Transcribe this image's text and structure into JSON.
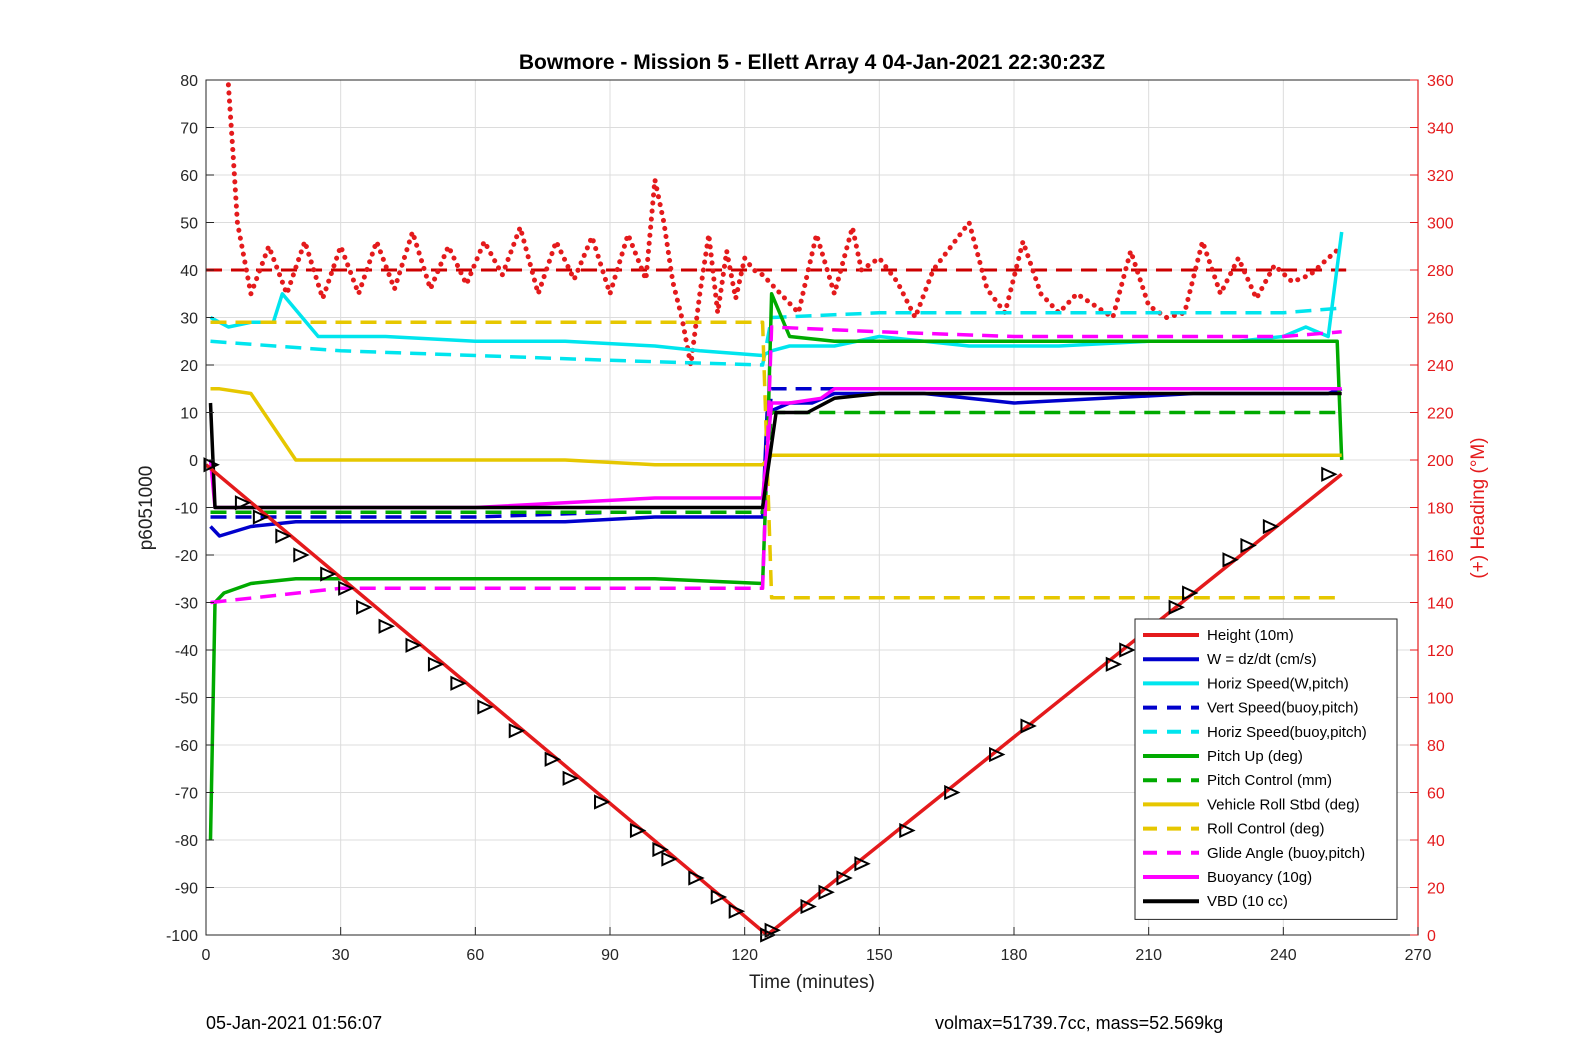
{
  "chart_data": {
    "type": "line",
    "title": "Bowmore - Mission 5 - Ellett Array 4 04-Jan-2021 22:30:23Z",
    "xlabel": "Time (minutes)",
    "ylabel_left": "p6051000",
    "ylabel_right": "(+) Heading (°M)",
    "xlim": [
      0,
      270
    ],
    "ylim_left": [
      -100,
      80
    ],
    "ylim_right": [
      0,
      360
    ],
    "xticks": [
      0,
      30,
      60,
      90,
      120,
      150,
      180,
      210,
      240,
      270
    ],
    "yticks_left": [
      -100,
      -90,
      -80,
      -70,
      -60,
      -50,
      -40,
      -30,
      -20,
      -10,
      0,
      10,
      20,
      30,
      40,
      50,
      60,
      70,
      80
    ],
    "yticks_right": [
      0,
      20,
      40,
      60,
      80,
      100,
      120,
      140,
      160,
      180,
      200,
      220,
      240,
      260,
      280,
      300,
      320,
      340,
      360
    ],
    "grid": true,
    "legend_placement": "bottom-right",
    "heading_target": 280,
    "series": [
      {
        "name": "Height (10m)",
        "color": "#e41a1c",
        "style": "solid",
        "x": [
          0,
          125,
          253
        ],
        "y": [
          -1,
          -100,
          -3
        ]
      },
      {
        "name": "W = dz/dt (cm/s)",
        "color": "#0000cc",
        "style": "solid",
        "x": [
          1,
          3,
          10,
          20,
          40,
          60,
          80,
          100,
          124,
          125,
          130,
          135,
          140,
          150,
          160,
          180,
          200,
          220,
          240,
          250,
          253
        ],
        "y": [
          -14,
          -16,
          -14,
          -13,
          -13,
          -13,
          -13,
          -12,
          -12,
          10,
          12,
          12,
          14,
          14,
          14,
          12,
          13,
          14,
          14,
          14,
          15
        ]
      },
      {
        "name": "Horiz Speed(W,pitch)",
        "color": "#00e5ee",
        "style": "solid",
        "x": [
          1,
          5,
          10,
          15,
          17,
          25,
          40,
          60,
          80,
          100,
          110,
          124,
          126,
          130,
          140,
          150,
          170,
          190,
          210,
          230,
          240,
          245,
          250,
          253
        ],
        "y": [
          30,
          28,
          29,
          29,
          35,
          26,
          26,
          25,
          25,
          24,
          23,
          22,
          23,
          24,
          24,
          26,
          24,
          24,
          25,
          25,
          26,
          28,
          26,
          48
        ]
      },
      {
        "name": "Vert Speed(buoy,pitch)",
        "color": "#0000cc",
        "style": "dashed",
        "x": [
          1,
          30,
          60,
          90,
          124,
          126,
          150,
          180,
          210,
          240,
          253
        ],
        "y": [
          -12,
          -12,
          -12,
          -11,
          -11,
          15,
          15,
          15,
          15,
          15,
          15
        ]
      },
      {
        "name": "Horiz Speed(buoy,pitch)",
        "color": "#00e5ee",
        "style": "dashed",
        "x": [
          1,
          30,
          60,
          90,
          124,
          126,
          150,
          180,
          210,
          240,
          253
        ],
        "y": [
          25,
          23,
          22,
          21,
          20,
          30,
          31,
          31,
          31,
          31,
          32
        ]
      },
      {
        "name": "Pitch Up (deg)",
        "color": "#00aa00",
        "style": "solid",
        "x": [
          1,
          2,
          4,
          10,
          20,
          40,
          60,
          80,
          100,
          124,
          125,
          126,
          130,
          140,
          150,
          180,
          210,
          240,
          252,
          253
        ],
        "y": [
          -80,
          -30,
          -28,
          -26,
          -25,
          -25,
          -25,
          -25,
          -25,
          -26,
          0,
          35,
          26,
          25,
          25,
          25,
          25,
          25,
          25,
          0
        ]
      },
      {
        "name": "Pitch Control (mm)",
        "color": "#00aa00",
        "style": "dashed",
        "x": [
          1,
          60,
          124,
          126,
          150,
          200,
          253
        ],
        "y": [
          -11,
          -11,
          -11,
          10,
          10,
          10,
          10
        ]
      },
      {
        "name": "Vehicle Roll Stbd (deg)",
        "color": "#e6c700",
        "style": "solid",
        "x": [
          1,
          3,
          10,
          20,
          40,
          60,
          80,
          100,
          124,
          126,
          150,
          180,
          210,
          240,
          253
        ],
        "y": [
          15,
          15,
          14,
          0,
          0,
          0,
          0,
          -1,
          -1,
          1,
          1,
          1,
          1,
          1,
          1
        ]
      },
      {
        "name": "Roll Control (deg)",
        "color": "#e6c700",
        "style": "dashed",
        "x": [
          1,
          124,
          126,
          253
        ],
        "y": [
          29,
          29,
          -29,
          -29
        ]
      },
      {
        "name": "Glide Angle (buoy,pitch)",
        "color": "#ff00ff",
        "style": "dashed",
        "x": [
          1,
          30,
          60,
          90,
          124,
          126,
          150,
          180,
          210,
          240,
          253
        ],
        "y": [
          -30,
          -27,
          -27,
          -27,
          -27,
          28,
          27,
          26,
          26,
          26,
          27
        ]
      },
      {
        "name": "Buoyancy (10g)",
        "color": "#ff00ff",
        "style": "solid",
        "x": [
          1,
          2,
          30,
          60,
          100,
          124,
          126,
          130,
          137,
          140,
          200,
          253
        ],
        "y": [
          0,
          -10,
          -10,
          -10,
          -8,
          -8,
          12,
          12,
          13,
          15,
          15,
          15
        ]
      },
      {
        "name": "VBD (10 cc)",
        "color": "#000000",
        "style": "solid",
        "x": [
          1,
          2,
          30,
          60,
          100,
          124,
          127,
          134,
          140,
          150,
          200,
          253
        ],
        "y": [
          12,
          -10,
          -10,
          -10,
          -10,
          -10,
          10,
          10,
          13,
          14,
          14,
          14
        ]
      }
    ],
    "heading_series": {
      "color": "#e41a1c",
      "style": "dotted",
      "x": [
        5,
        6,
        7,
        8,
        9,
        10,
        14,
        18,
        22,
        26,
        30,
        34,
        38,
        42,
        46,
        50,
        54,
        58,
        62,
        66,
        70,
        74,
        78,
        82,
        86,
        90,
        94,
        98,
        100,
        102,
        104,
        106,
        108,
        110,
        112,
        114,
        116,
        118,
        120,
        122,
        124,
        128,
        132,
        136,
        140,
        144,
        146,
        150,
        154,
        158,
        162,
        166,
        170,
        174,
        178,
        182,
        186,
        190,
        194,
        198,
        202,
        206,
        210,
        214,
        218,
        222,
        226,
        230,
        234,
        238,
        242,
        246,
        250,
        253
      ],
      "y": [
        358,
        330,
        300,
        290,
        280,
        270,
        290,
        270,
        292,
        268,
        290,
        270,
        292,
        272,
        296,
        272,
        290,
        274,
        292,
        278,
        298,
        270,
        292,
        276,
        294,
        270,
        295,
        276,
        318,
        300,
        275,
        260,
        240,
        270,
        295,
        262,
        288,
        268,
        285,
        280,
        278,
        270,
        262,
        295,
        270,
        298,
        280,
        285,
        275,
        260,
        280,
        290,
        300,
        272,
        262,
        292,
        270,
        262,
        270,
        265,
        260,
        288,
        265,
        260,
        262,
        292,
        270,
        285,
        268,
        282,
        275,
        278,
        285,
        290
      ]
    },
    "markers": {
      "type": "triangle",
      "x": [
        1,
        8,
        12,
        17,
        21,
        27,
        31,
        35,
        40,
        46,
        51,
        56,
        62,
        69,
        77,
        81,
        88,
        96,
        101,
        103,
        109,
        114,
        118,
        125,
        126,
        134,
        138,
        142,
        146,
        156,
        166,
        176,
        183,
        202,
        205,
        216,
        219,
        228,
        232,
        237,
        250
      ],
      "y": [
        -1,
        -9,
        -12,
        -16,
        -20,
        -24,
        -27,
        -31,
        -35,
        -39,
        -43,
        -47,
        -52,
        -57,
        -63,
        -67,
        -72,
        -78,
        -82,
        -84,
        -88,
        -92,
        -95,
        -100,
        -99,
        -94,
        -91,
        -88,
        -85,
        -78,
        -70,
        -62,
        -56,
        -43,
        -40,
        -31,
        -28,
        -21,
        -18,
        -14,
        -3
      ]
    }
  },
  "footer": {
    "left": "05-Jan-2021 01:56:07",
    "right": "volmax=51739.7cc, mass=52.569kg"
  }
}
